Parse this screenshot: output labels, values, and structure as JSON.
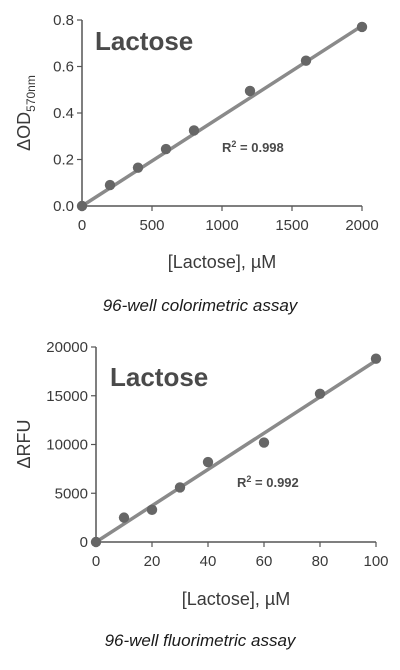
{
  "colors": {
    "point": "#666666",
    "line": "#8a8a8a",
    "axis": "#555555"
  },
  "chart_data": [
    {
      "type": "scatter",
      "title": "Lactose",
      "caption": "96-well colorimetric assay",
      "xlabel": "[Lactose], µM",
      "ylabel_main": "ΔOD",
      "ylabel_sub": "570nm",
      "annotation_main": "R",
      "annotation_sup": "2",
      "annotation_rest": " = 0.998",
      "xlim": [
        0,
        2000
      ],
      "ylim": [
        0,
        0.8
      ],
      "xticks": [
        0,
        500,
        1000,
        1500,
        2000
      ],
      "xtick_labels": [
        "0",
        "500",
        "1000",
        "1500",
        "2000"
      ],
      "yticks": [
        0,
        0.2,
        0.4,
        0.6,
        0.8
      ],
      "ytick_labels": [
        "0.0",
        "0.2",
        "0.4",
        "0.6",
        "0.8"
      ],
      "grid": false,
      "points": {
        "x": [
          0,
          200,
          400,
          600,
          800,
          1200,
          1600,
          2000
        ],
        "y": [
          0.0,
          0.09,
          0.165,
          0.245,
          0.325,
          0.495,
          0.625,
          0.77
        ]
      },
      "fit": {
        "x": [
          0,
          2000
        ],
        "y": [
          0.0,
          0.775
        ]
      }
    },
    {
      "type": "scatter",
      "title": "Lactose",
      "caption": "96-well fluorimetric assay",
      "xlabel": "[Lactose], µM",
      "ylabel_main": "ΔRFU",
      "ylabel_sub": "",
      "annotation_main": "R",
      "annotation_sup": "2",
      "annotation_rest": " = 0.992",
      "xlim": [
        0,
        100
      ],
      "ylim": [
        0,
        20000
      ],
      "xticks": [
        0,
        20,
        40,
        60,
        80,
        100
      ],
      "xtick_labels": [
        "0",
        "20",
        "40",
        "60",
        "80",
        "100"
      ],
      "yticks": [
        0,
        5000,
        10000,
        15000,
        20000
      ],
      "ytick_labels": [
        "0",
        "5000",
        "10000",
        "15000",
        "20000"
      ],
      "grid": false,
      "points": {
        "x": [
          0,
          10,
          20,
          30,
          40,
          60,
          80,
          100
        ],
        "y": [
          0,
          2500,
          3300,
          5600,
          8200,
          10200,
          15200,
          18800
        ]
      },
      "fit": {
        "x": [
          0,
          100
        ],
        "y": [
          0,
          18600
        ]
      }
    }
  ]
}
